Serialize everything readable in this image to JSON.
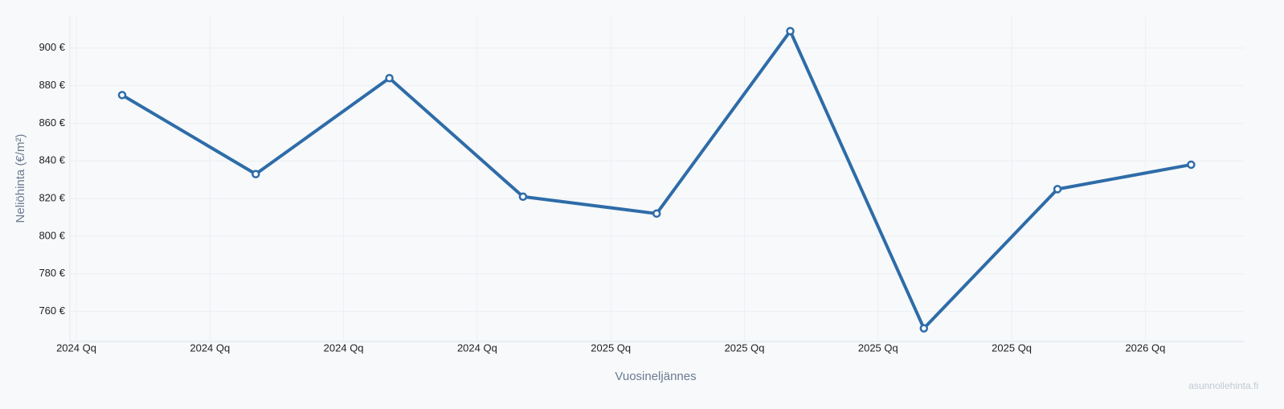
{
  "chart_data": {
    "type": "line",
    "x_label": "Vuosineljännes",
    "y_label": "Neliöhinta (€/m²)",
    "watermark": "asunnollehinta.fi",
    "categories": [
      "2024 Qq",
      "2024 Qq",
      "2024 Qq",
      "2024 Qq",
      "2025 Qq",
      "2025 Qq",
      "2025 Qq",
      "2025 Qq",
      "2026 Qq"
    ],
    "series": [
      {
        "name": "Neliöhinta",
        "color": "#2e6ca8",
        "values": [
          875,
          833,
          884,
          821,
          812,
          909,
          751,
          825,
          838
        ]
      }
    ],
    "ylim": [
      744,
      917
    ],
    "yticks": [
      {
        "value": 760,
        "label": "760 €"
      },
      {
        "value": 780,
        "label": "780 €"
      },
      {
        "value": 800,
        "label": "800 €"
      },
      {
        "value": 820,
        "label": "820 €"
      },
      {
        "value": 840,
        "label": "840 €"
      },
      {
        "value": 860,
        "label": "860 €"
      },
      {
        "value": 880,
        "label": "880 €"
      },
      {
        "value": 900,
        "label": "900 €"
      }
    ],
    "grid": true
  }
}
